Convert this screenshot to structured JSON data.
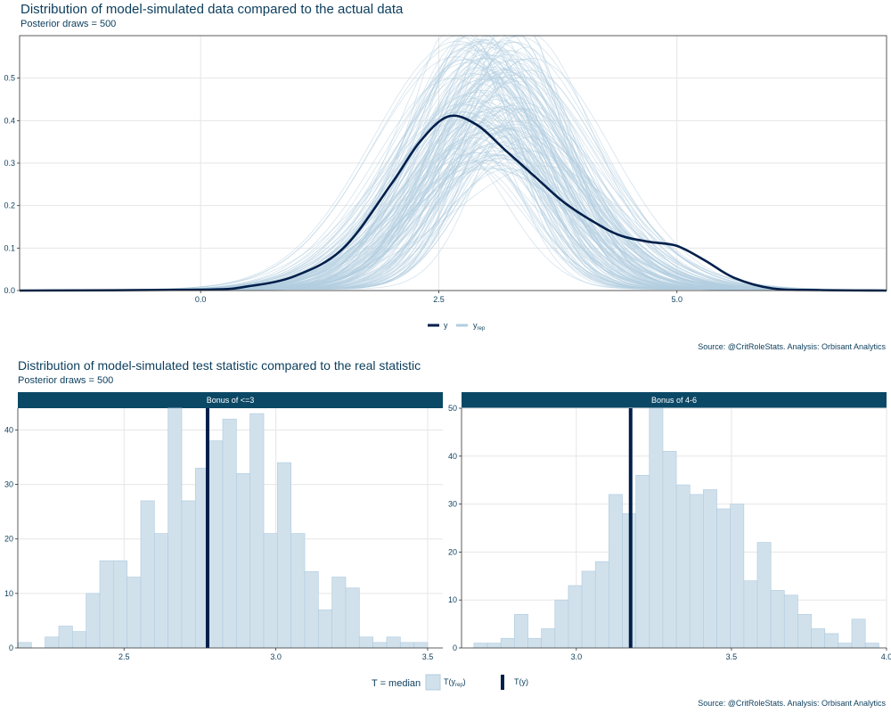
{
  "top": {
    "title": "Distribution of model-simulated data compared to the actual data",
    "subtitle": "Posterior draws = 500",
    "source": "Source: @CritRoleStats. Analysis: Orbisant Analytics",
    "legend": {
      "y_label": "y",
      "yrep_label": "y",
      "yrep_sub": "rep"
    },
    "colors": {
      "y": "#011f4b",
      "yrep": "#b3cde0"
    }
  },
  "bottom": {
    "title": "Distribution of model-simulated test statistic compared to the real statistic",
    "subtitle": "Posterior draws = 500",
    "source": "Source: @CritRoleStats. Analysis: Orbisant Analytics",
    "legend": {
      "stat_label": "T = median",
      "trep_label": "T(y",
      "trep_sub": "rep",
      "trep_close": ")",
      "ty_label": "T(y)"
    },
    "colors": {
      "strip": "#0b4866",
      "bar_fill": "#d1e1ec",
      "bar_stroke": "#b3cde0",
      "stat_line": "#011f4b"
    }
  },
  "chart_data": [
    {
      "type": "line",
      "title": "Distribution of model-simulated data compared to the actual data",
      "subtitle": "Posterior draws = 500",
      "xlim": [
        -1.9,
        7.2
      ],
      "ylim": [
        0,
        0.6
      ],
      "xticks": [
        0.0,
        2.5,
        5.0
      ],
      "xtick_labels": [
        "0.0",
        "2.5",
        "5.0"
      ],
      "yticks": [
        0.0,
        0.1,
        0.2,
        0.3,
        0.4,
        0.5
      ],
      "ytick_labels": [
        "0.0",
        "0.1",
        "0.2",
        "0.3",
        "0.4",
        "0.5"
      ],
      "grid": true,
      "legend_position": "bottom",
      "series": [
        {
          "name": "y",
          "x": [
            -1.9,
            0.0,
            0.5,
            1.0,
            1.5,
            2.0,
            2.3,
            2.6,
            2.9,
            3.2,
            3.5,
            3.8,
            4.1,
            4.4,
            4.7,
            5.0,
            5.3,
            5.6,
            6.0,
            6.5,
            7.2
          ],
          "y": [
            0.0,
            0.002,
            0.01,
            0.035,
            0.1,
            0.25,
            0.35,
            0.41,
            0.39,
            0.33,
            0.27,
            0.21,
            0.165,
            0.13,
            0.115,
            0.105,
            0.07,
            0.03,
            0.005,
            0.001,
            0.0
          ]
        },
        {
          "name": "y_rep",
          "draws": 500,
          "description_peak_x": 3.05,
          "peak_y_range": [
            0.27,
            0.6
          ]
        }
      ]
    },
    {
      "type": "bar",
      "facet": "Bonus of <=3",
      "xlim": [
        2.15,
        3.55
      ],
      "ylim": [
        0,
        44
      ],
      "xticks": [
        2.5,
        3.0,
        3.5
      ],
      "xtick_labels": [
        "2.5",
        "3.0",
        "3.5"
      ],
      "yticks": [
        0,
        10,
        20,
        30,
        40
      ],
      "ytick_labels": [
        "0",
        "10",
        "20",
        "30",
        "40"
      ],
      "bin_start": 2.15,
      "bin_width": 0.045,
      "values": [
        1,
        0,
        2,
        4,
        3,
        10,
        16,
        16,
        13,
        27,
        21,
        44,
        27,
        33,
        38,
        42,
        32,
        43,
        21,
        34,
        21,
        14,
        7,
        13,
        11,
        2,
        1,
        2,
        1,
        1
      ],
      "observed_T": 2.775
    },
    {
      "type": "bar",
      "facet": "Bonus of 4-6",
      "xlim": [
        2.63,
        4.0
      ],
      "ylim": [
        0,
        50
      ],
      "xticks": [
        3.0,
        3.5,
        4.0
      ],
      "xtick_labels": [
        "3.0",
        "3.5",
        "4.0"
      ],
      "yticks": [
        0,
        10,
        20,
        30,
        40,
        50
      ],
      "ytick_labels": [
        "0",
        "10",
        "20",
        "30",
        "40",
        "50"
      ],
      "bin_start": 2.67,
      "bin_width": 0.0435,
      "values": [
        1,
        1,
        2,
        7,
        2,
        4,
        10,
        13,
        16,
        18,
        32,
        28,
        36,
        50,
        41,
        34,
        32,
        33,
        29,
        30,
        14,
        22,
        12,
        11,
        7,
        4,
        3,
        1,
        6,
        1
      ],
      "observed_T": 3.175
    }
  ]
}
